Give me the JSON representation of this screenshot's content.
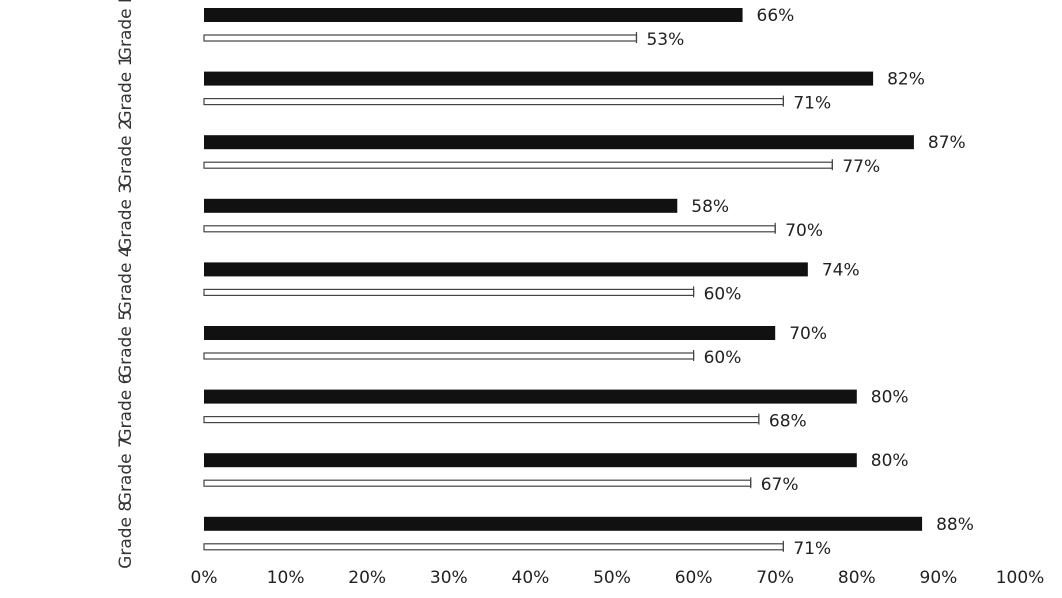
{
  "chart_data": {
    "type": "bar",
    "orientation": "horizontal",
    "title": "",
    "xlabel": "",
    "ylabel": "",
    "categories": [
      "Grade K",
      "Grade 1",
      "Grade 2",
      "Grade 3",
      "Grade 4",
      "Grade 5",
      "Grade 6",
      "Grade 7",
      "Grade 8"
    ],
    "series": [
      {
        "values": [
          66,
          82,
          87,
          58,
          74,
          70,
          80,
          80,
          88
        ],
        "labels": [
          "66%",
          "82%",
          "87%",
          "58%",
          "74%",
          "70%",
          "80%",
          "80%",
          "88%"
        ],
        "color": "#111111",
        "style": "solid"
      },
      {
        "values": [
          53,
          71,
          77,
          70,
          60,
          60,
          68,
          67,
          71
        ],
        "labels": [
          "53%",
          "71%",
          "77%",
          "70%",
          "60%",
          "60%",
          "68%",
          "67%",
          "71%"
        ],
        "color": "#ffffff",
        "style": "outline"
      }
    ],
    "xlim": [
      0,
      100
    ],
    "xticks": [
      "0%",
      "10%",
      "20%",
      "30%",
      "40%",
      "50%",
      "60%",
      "70%",
      "80%",
      "90%",
      "100%"
    ],
    "grid": false,
    "legend": "none"
  }
}
